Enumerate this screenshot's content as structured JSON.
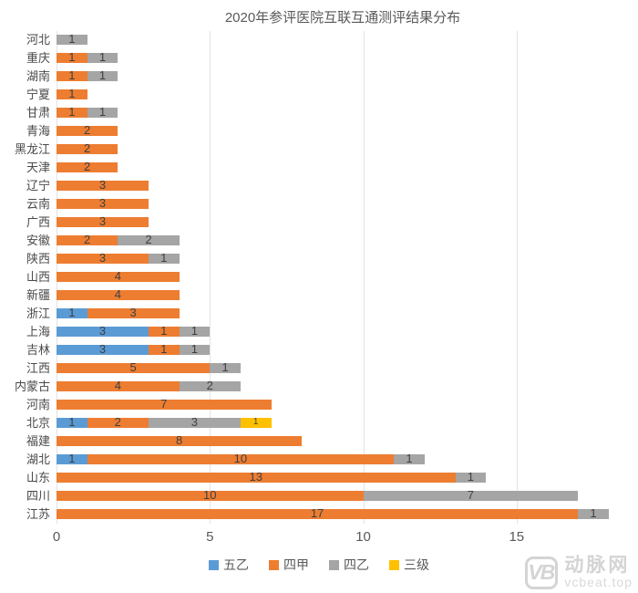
{
  "chart_data": {
    "type": "bar",
    "orientation": "horizontal",
    "stacked": true,
    "title": "2020年参评医院互联互通测评结果分布",
    "categories": [
      "河北",
      "重庆",
      "湖南",
      "宁夏",
      "甘肃",
      "青海",
      "黑龙江",
      "天津",
      "辽宁",
      "云南",
      "广西",
      "安徽",
      "陕西",
      "山西",
      "新疆",
      "浙江",
      "上海",
      "吉林",
      "江西",
      "内蒙古",
      "河南",
      "北京",
      "福建",
      "湖北",
      "山东",
      "四川",
      "江苏"
    ],
    "series": [
      {
        "name": "五乙",
        "color": "#5B9BD5",
        "values": [
          0,
          0,
          0,
          0,
          0,
          0,
          0,
          0,
          0,
          0,
          0,
          0,
          0,
          0,
          0,
          1,
          3,
          3,
          0,
          0,
          0,
          1,
          0,
          1,
          0,
          0,
          0
        ]
      },
      {
        "name": "四甲",
        "color": "#ED7D31",
        "values": [
          0,
          1,
          1,
          1,
          1,
          2,
          2,
          2,
          3,
          3,
          3,
          2,
          3,
          4,
          4,
          3,
          1,
          1,
          5,
          4,
          7,
          2,
          8,
          10,
          13,
          10,
          17
        ]
      },
      {
        "name": "四乙",
        "color": "#A5A5A5",
        "values": [
          1,
          1,
          1,
          0,
          1,
          0,
          0,
          0,
          0,
          0,
          0,
          2,
          1,
          0,
          0,
          0,
          1,
          1,
          1,
          2,
          0,
          3,
          0,
          1,
          1,
          7,
          1
        ]
      },
      {
        "name": "三级",
        "color": "#FFC000",
        "values": [
          0,
          0,
          0,
          0,
          0,
          0,
          0,
          0,
          0,
          0,
          0,
          0,
          0,
          0,
          0,
          0,
          0,
          0,
          0,
          0,
          0,
          1,
          0,
          0,
          0,
          0,
          0
        ]
      }
    ],
    "xticks": [
      0,
      5,
      10,
      15
    ],
    "xlim": [
      0,
      18.66
    ],
    "grid": "vertical",
    "legend_position": "bottom",
    "data_label_color": "#3f3f3f"
  },
  "watermark": {
    "logo": "VB",
    "name": "动脉网",
    "site": "vcbeat.top"
  }
}
